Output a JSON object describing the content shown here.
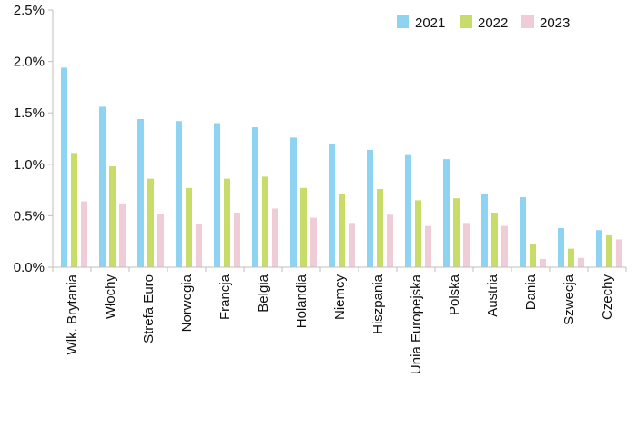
{
  "chart_data": {
    "type": "bar",
    "categories": [
      "Wlk. Brytania",
      "Włochy",
      "Strefa Euro",
      "Norwegia",
      "Francja",
      "Belgia",
      "Holandia",
      "Niemcy",
      "Hiszpania",
      "Unia Europejska",
      "Polska",
      "Austria",
      "Dania",
      "Szwecja",
      "Czechy"
    ],
    "series": [
      {
        "name": "2021",
        "color": "#8fd3f2",
        "values": [
          1.94,
          1.56,
          1.44,
          1.42,
          1.4,
          1.36,
          1.26,
          1.2,
          1.14,
          1.09,
          1.05,
          0.71,
          0.68,
          0.38,
          0.36
        ]
      },
      {
        "name": "2022",
        "color": "#c8dc6a",
        "values": [
          1.11,
          0.98,
          0.86,
          0.77,
          0.86,
          0.88,
          0.77,
          0.71,
          0.76,
          0.65,
          0.67,
          0.53,
          0.23,
          0.18,
          0.31
        ]
      },
      {
        "name": "2023",
        "color": "#f0cdd6",
        "values": [
          0.64,
          0.62,
          0.52,
          0.42,
          0.53,
          0.57,
          0.48,
          0.43,
          0.51,
          0.4,
          0.43,
          0.4,
          0.08,
          0.09,
          0.27
        ]
      }
    ],
    "ylim": [
      0,
      2.5
    ],
    "yticks": [
      "0.0%",
      "0.5%",
      "1.0%",
      "1.5%",
      "2.0%",
      "2.5%"
    ],
    "ytick_values": [
      0,
      0.5,
      1.0,
      1.5,
      2.0,
      2.5
    ],
    "legend_position": "top-right",
    "grid": false
  }
}
